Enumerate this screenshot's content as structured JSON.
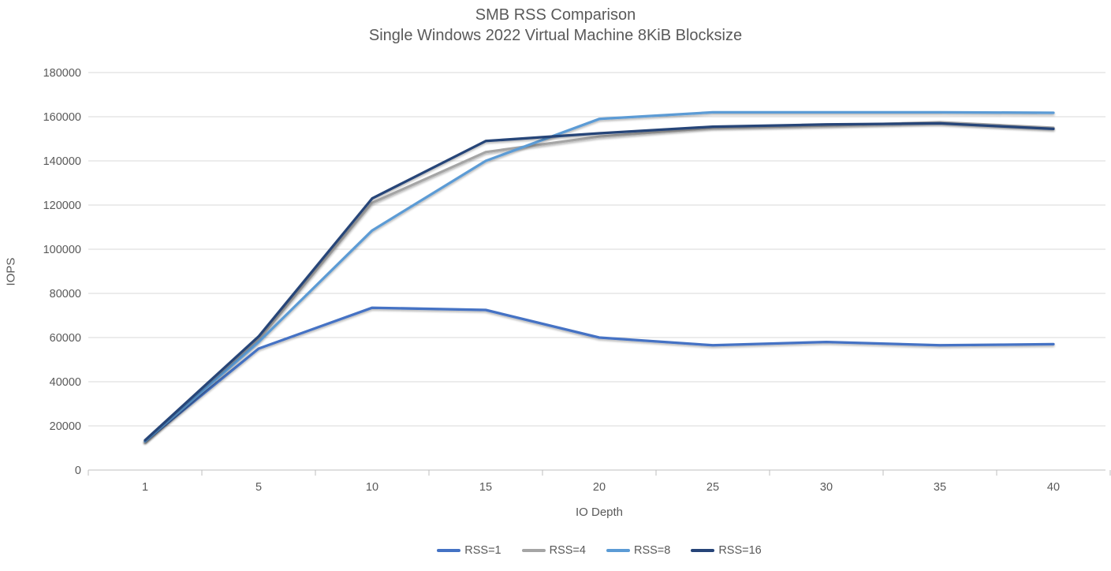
{
  "window": {
    "background": "#ffffff"
  },
  "chart_data": {
    "type": "line",
    "title": "SMB RSS Comparison",
    "subtitle": "Single Windows 2022 Virtual Machine 8KiB Blocksize",
    "xlabel": "IO Depth",
    "ylabel": "IOPS",
    "categories": [
      "1",
      "5",
      "10",
      "15",
      "20",
      "25",
      "30",
      "35",
      "40"
    ],
    "ylim": [
      0,
      180000
    ],
    "ytick_step": 20000,
    "ytick_labels": [
      "0",
      "20000",
      "40000",
      "60000",
      "80000",
      "100000",
      "120000",
      "140000",
      "160000",
      "180000"
    ],
    "grid": "horizontal",
    "legend_position": "bottom",
    "series": [
      {
        "name": "RSS=1",
        "color": "#4472C4",
        "values": [
          13000,
          55000,
          73500,
          72500,
          60000,
          56500,
          58000,
          56500,
          57000
        ]
      },
      {
        "name": "RSS=4",
        "color": "#A5A5A5",
        "values": [
          13000,
          59000,
          121000,
          144000,
          151000,
          155000,
          156000,
          157500,
          155000
        ]
      },
      {
        "name": "RSS=8",
        "color": "#5B9BD5",
        "values": [
          13000,
          58000,
          108500,
          140000,
          159000,
          162000,
          162000,
          162000,
          161800
        ]
      },
      {
        "name": "RSS=16",
        "color": "#264478",
        "values": [
          13500,
          60500,
          123000,
          149000,
          152500,
          155500,
          156500,
          157000,
          154500
        ]
      }
    ],
    "text_color": "#595959",
    "gridline_color": "#D9D9D9",
    "axis_color": "#BFBFBF"
  }
}
